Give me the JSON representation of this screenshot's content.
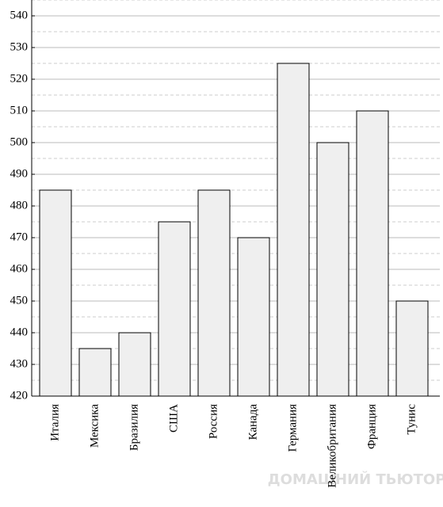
{
  "chart_data": {
    "type": "bar",
    "categories": [
      "Италия",
      "Мексика",
      "Бразилия",
      "США",
      "Россия",
      "Канада",
      "Германия",
      "Великобритания",
      "Франция",
      "Тунис"
    ],
    "values": [
      485,
      435,
      440,
      475,
      485,
      470,
      525,
      500,
      510,
      450
    ],
    "color": "#efefef",
    "ylim": [
      420,
      545
    ],
    "yticks": [
      420,
      430,
      440,
      450,
      460,
      470,
      480,
      490,
      500,
      510,
      520,
      530,
      540
    ],
    "minor_yticks": [
      425,
      435,
      445,
      455,
      465,
      475,
      485,
      495,
      505,
      515,
      525,
      535,
      545
    ],
    "grid": true,
    "watermark": "ДОМАШНИЙ ТЬЮТОР"
  }
}
